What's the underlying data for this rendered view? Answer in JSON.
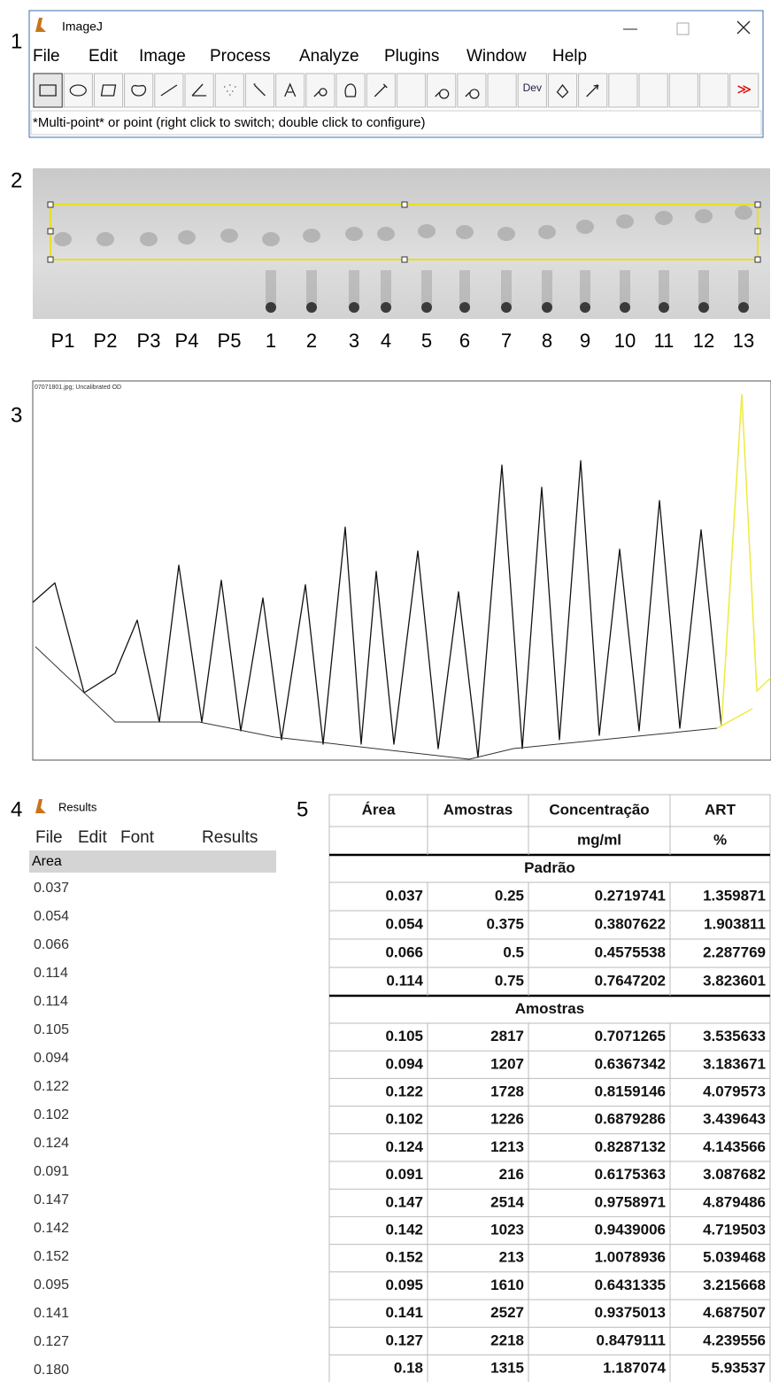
{
  "panel_labels": [
    "1",
    "2",
    "3",
    "4",
    "5"
  ],
  "imagej": {
    "title": "ImageJ",
    "menu": [
      "File",
      "Edit",
      "Image",
      "Process",
      "Analyze",
      "Plugins",
      "Window",
      "Help"
    ],
    "toolbar": {
      "dev": "Dev",
      "more": "≫"
    },
    "status": "*Multi-point* or point (right click to switch; double click to configure)"
  },
  "plate": {
    "lanes": [
      "P1",
      "P2",
      "P3",
      "P4",
      "P5",
      "1",
      "2",
      "3",
      "4",
      "5",
      "6",
      "7",
      "8",
      "9",
      "10",
      "11",
      "12",
      "13"
    ]
  },
  "profile": {
    "caption": "07071801.jpg; Uncalibrated OD"
  },
  "results": {
    "title": "Results",
    "menu": [
      "File",
      "Edit",
      "Font",
      "Results"
    ],
    "header": "Area",
    "values": [
      "0.037",
      "0.054",
      "0.066",
      "0.114",
      "0.114",
      "0.105",
      "0.094",
      "0.122",
      "0.102",
      "0.124",
      "0.091",
      "0.147",
      "0.142",
      "0.152",
      "0.095",
      "0.141",
      "0.127",
      "0.180"
    ]
  },
  "table": {
    "header": [
      "Área",
      "Amostras",
      "Concentração",
      "ART"
    ],
    "units": [
      "mg/ml",
      "%"
    ],
    "sections": [
      {
        "title": "Padrão",
        "rows": [
          [
            "0.037",
            "0.25",
            "0.2719741",
            "1.359871"
          ],
          [
            "0.054",
            "0.375",
            "0.3807622",
            "1.903811"
          ],
          [
            "0.066",
            "0.5",
            "0.4575538",
            "2.287769"
          ],
          [
            "0.114",
            "0.75",
            "0.7647202",
            "3.823601"
          ]
        ]
      },
      {
        "title": "Amostras",
        "rows": [
          [
            "0.105",
            "2817",
            "0.7071265",
            "3.535633"
          ],
          [
            "0.094",
            "1207",
            "0.6367342",
            "3.183671"
          ],
          [
            "0.122",
            "1728",
            "0.8159146",
            "4.079573"
          ],
          [
            "0.102",
            "1226",
            "0.6879286",
            "3.439643"
          ],
          [
            "0.124",
            "1213",
            "0.8287132",
            "4.143566"
          ],
          [
            "0.091",
            "216",
            "0.6175363",
            "3.087682"
          ],
          [
            "0.147",
            "2514",
            "0.9758971",
            "4.879486"
          ],
          [
            "0.142",
            "1023",
            "0.9439006",
            "4.719503"
          ],
          [
            "0.152",
            "213",
            "1.0078936",
            "5.039468"
          ],
          [
            "0.095",
            "1610",
            "0.6431335",
            "3.215668"
          ],
          [
            "0.141",
            "2527",
            "0.9375013",
            "4.687507"
          ],
          [
            "0.127",
            "2218",
            "0.8479111",
            "4.239556"
          ],
          [
            "0.18",
            "1315",
            "1.187074",
            "5.93537"
          ]
        ]
      }
    ]
  }
}
